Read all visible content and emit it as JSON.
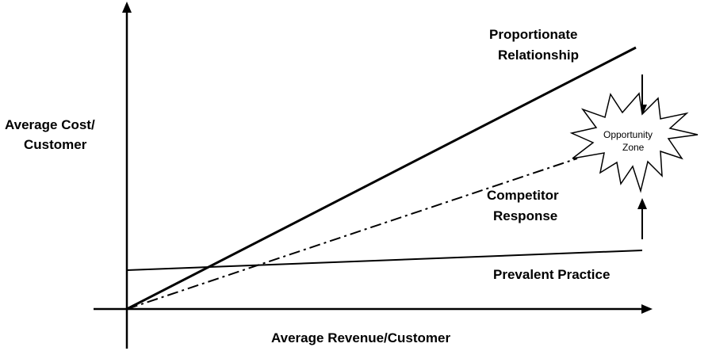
{
  "axes": {
    "y_label_line1": "Average Cost/",
    "y_label_line2": "Customer",
    "x_label": "Average Revenue/Customer"
  },
  "lines": {
    "proportionate_line1": "Proportionate",
    "proportionate_line2": "Relationship",
    "competitor_line1": "Competitor",
    "competitor_line2": "Response",
    "prevalent": "Prevalent Practice"
  },
  "opportunity": {
    "line1": "Opportunity",
    "line2": "Zone"
  },
  "colors": {
    "stroke": "#000000",
    "background": "#ffffff"
  }
}
